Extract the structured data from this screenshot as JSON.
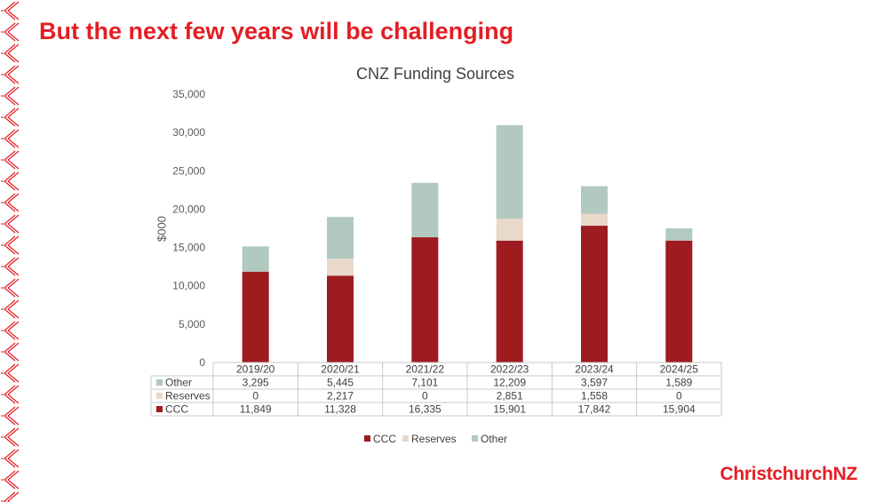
{
  "slide": {
    "title": "But the next few years will be challenging",
    "brand": "ChristchurchNZ"
  },
  "colors": {
    "accent": "#e31e24",
    "ccc": "#9e1b20",
    "reserves": "#e8d9ca",
    "other": "#b2c9bf"
  },
  "chart_data": {
    "type": "bar",
    "stacked": true,
    "title": "CNZ Funding Sources",
    "ylabel": "$000",
    "xlabel": "",
    "ylim": [
      0,
      35000
    ],
    "yticks": [
      "0",
      "5,000",
      "10,000",
      "15,000",
      "20,000",
      "25,000",
      "30,000",
      "35,000"
    ],
    "categories": [
      "2019/20",
      "2020/21",
      "2021/22",
      "2022/23",
      "2023/24",
      "2024/25"
    ],
    "series": [
      {
        "name": "CCC",
        "color": "#9e1b20",
        "values": [
          11849,
          11328,
          16335,
          15901,
          17842,
          15904
        ],
        "labels": [
          "11,849",
          "11,328",
          "16,335",
          "15,901",
          "17,842",
          "15,904"
        ]
      },
      {
        "name": "Reserves",
        "color": "#e8d9ca",
        "values": [
          0,
          2217,
          0,
          2851,
          1558,
          0
        ],
        "labels": [
          "0",
          "2,217",
          "0",
          "2,851",
          "1,558",
          "0"
        ]
      },
      {
        "name": "Other",
        "color": "#b2c9bf",
        "values": [
          3295,
          5445,
          7101,
          12209,
          3597,
          1589
        ],
        "labels": [
          "3,295",
          "5,445",
          "7,101",
          "12,209",
          "3,597",
          "1,589"
        ]
      }
    ],
    "grid": false,
    "legend": "bottom",
    "data_table": true
  }
}
